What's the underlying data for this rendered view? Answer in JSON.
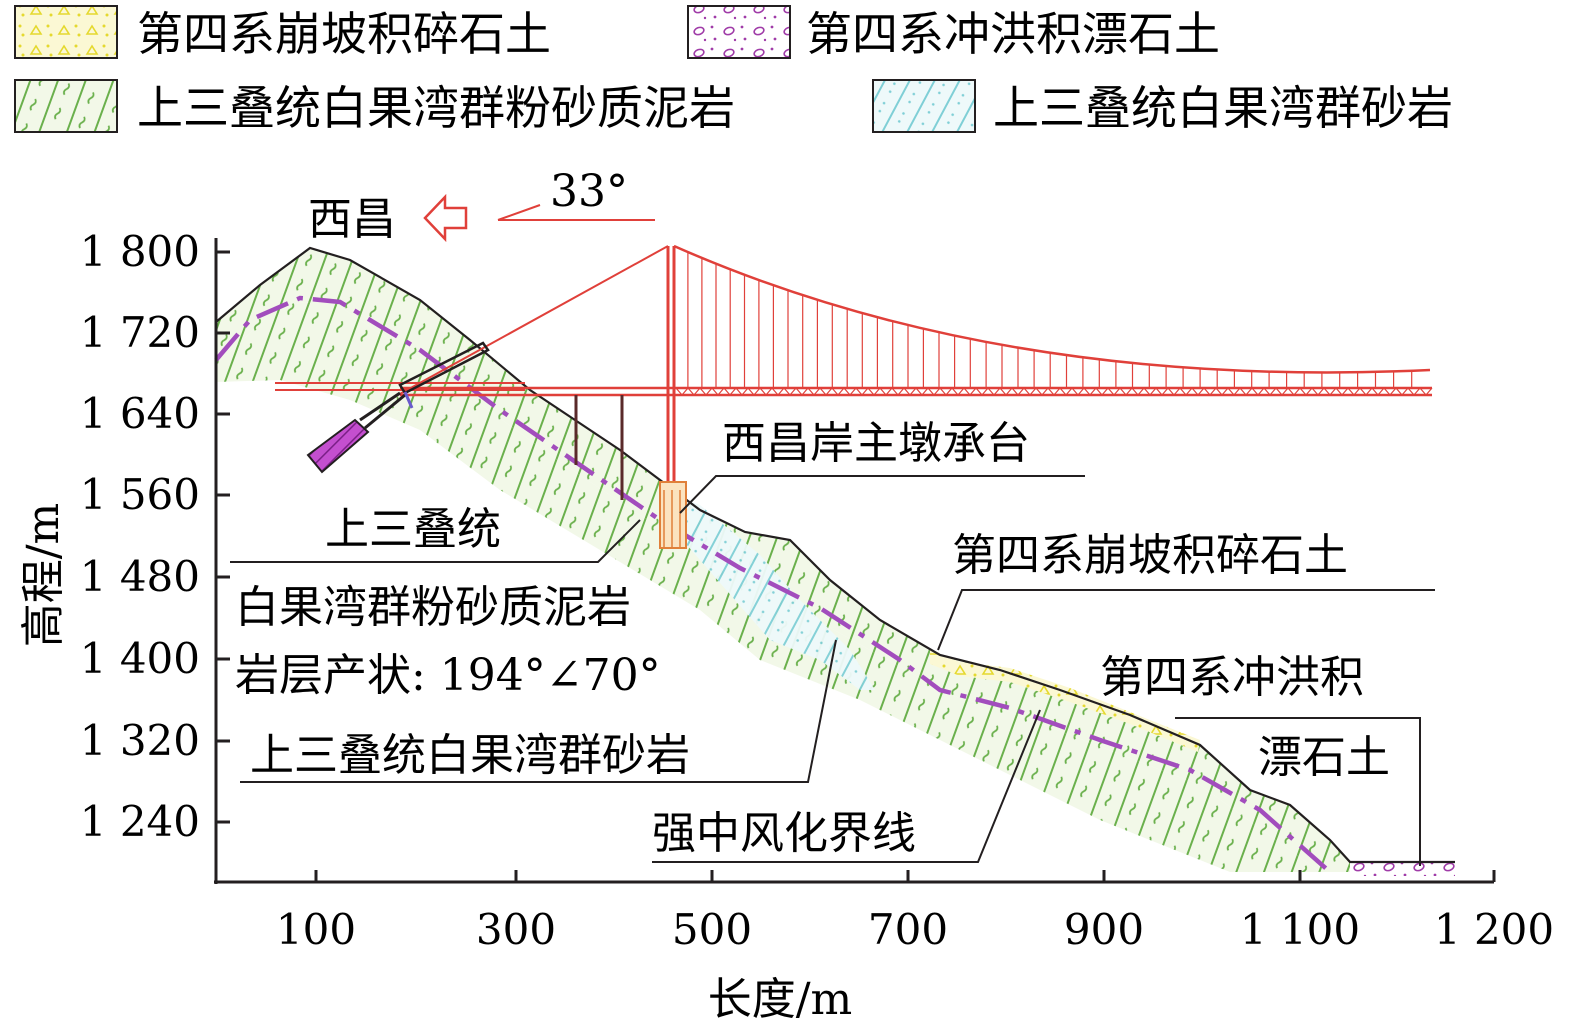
{
  "legend": [
    {
      "label": "第四系崩坡积碎石土",
      "pattern": "colluvium"
    },
    {
      "label": "第四系冲洪积漂石土",
      "pattern": "alluvium"
    },
    {
      "label": "上三叠统白果湾群粉砂质泥岩",
      "pattern": "mudstone"
    },
    {
      "label": "上三叠统白果湾群砂岩",
      "pattern": "sandstone"
    }
  ],
  "direction": {
    "place": "西昌",
    "angle": "33°"
  },
  "axes": {
    "xlabel": "长度/m",
    "ylabel": "高程/m",
    "xticks": [
      "100",
      "300",
      "500",
      "700",
      "900",
      "1 100",
      "1 200"
    ],
    "yticks": [
      "1 800",
      "1 720",
      "1 640",
      "1 560",
      "1 480",
      "1 400",
      "1 320",
      "1 240"
    ]
  },
  "annotations": {
    "pier_cap": "西昌岸主墩承台",
    "mudstone_1": "上三叠统",
    "mudstone_2": "白果湾群粉砂质泥岩",
    "bedding": "岩层产状: 194°∠70°",
    "sandstone": "上三叠统白果湾群砂岩",
    "weathering": "强中风化界线",
    "colluvium": "第四系崩坡积碎石土",
    "alluvium_1": "第四系冲洪积",
    "alluvium_2": "漂石土"
  },
  "colors": {
    "bridge": "#e0403a",
    "mudstone_line": "#6ab04c",
    "mudstone_bg": "#f1f8e6",
    "sandstone_line": "#7fcfd6",
    "colluvium": "#e9e44a",
    "alluvium": "#a03ca8",
    "weathering_line": "#a24dbd",
    "ink": "#231f20"
  }
}
